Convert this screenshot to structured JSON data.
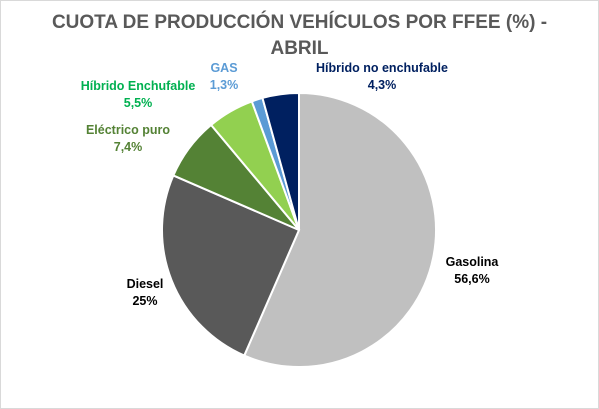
{
  "chart_data": {
    "type": "pie",
    "title_lines": [
      "CUOTA DE PRODUCCIÓN VEHÍCULOS POR FFEE (%) -",
      "ABRIL"
    ],
    "slices": [
      {
        "name": "Gasolina",
        "value": 56.6,
        "value_label": "56,6%",
        "color": "#c0c0c0",
        "label_color": "#000000"
      },
      {
        "name": "Diesel",
        "value": 25,
        "value_label": "25%",
        "color": "#595959",
        "label_color": "#000000"
      },
      {
        "name": "Eléctrico puro",
        "value": 7.4,
        "value_label": "7,4%",
        "color": "#548235",
        "label_color": "#548235"
      },
      {
        "name": "Híbrido Enchufable",
        "value": 5.5,
        "value_label": "5,5%",
        "color": "#92d050",
        "label_color": "#00b050"
      },
      {
        "name": "GAS",
        "value": 1.3,
        "value_label": "1,3%",
        "color": "#5b9bd5",
        "label_color": "#5b9bd5"
      },
      {
        "name": "Híbrido no enchufable",
        "value": 4.3,
        "value_label": "4,3%",
        "color": "#002060",
        "label_color": "#002060"
      }
    ]
  }
}
